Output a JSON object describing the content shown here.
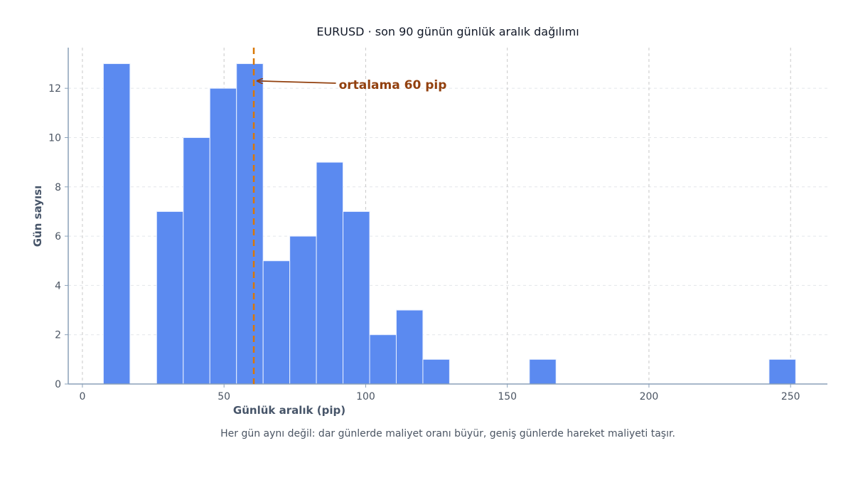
{
  "colors": {
    "bar": "#5B8AF0",
    "bar_edge": "#e8efff",
    "mean_line": "#D97706",
    "annotation": "#92400E",
    "axis": "#8aa0b8",
    "grid_v": "#c8c8c8",
    "grid_h": "#e3e6ea"
  },
  "chart_data": {
    "type": "bar",
    "title": "EURUSD · son 90 günün günlük aralık dağılımı",
    "subtitle": "Her gün aynı değil: dar günlerde maliyet oranı büyür, geniş günlerde hareket maliyeti taşır.",
    "xlabel": "Günlük aralık (pip)",
    "ylabel": "Gün sayısı",
    "xlim": [
      -5,
      263
    ],
    "ylim": [
      0,
      13.65
    ],
    "x_ticks": [
      0,
      50,
      100,
      150,
      200,
      250
    ],
    "y_ticks": [
      0,
      2,
      4,
      6,
      8,
      10,
      12
    ],
    "grid": true,
    "bins": [
      {
        "x0": 7.4,
        "x1": 16.8,
        "count": 13
      },
      {
        "x0": 26.2,
        "x1": 35.6,
        "count": 7
      },
      {
        "x0": 35.6,
        "x1": 45.0,
        "count": 10
      },
      {
        "x0": 45.0,
        "x1": 54.4,
        "count": 12
      },
      {
        "x0": 54.4,
        "x1": 63.8,
        "count": 13
      },
      {
        "x0": 63.8,
        "x1": 73.2,
        "count": 5
      },
      {
        "x0": 73.2,
        "x1": 82.6,
        "count": 6
      },
      {
        "x0": 82.6,
        "x1": 92.0,
        "count": 9
      },
      {
        "x0": 92.0,
        "x1": 101.4,
        "count": 7
      },
      {
        "x0": 101.4,
        "x1": 110.8,
        "count": 2
      },
      {
        "x0": 110.8,
        "x1": 120.2,
        "count": 3
      },
      {
        "x0": 120.2,
        "x1": 129.6,
        "count": 1
      },
      {
        "x0": 157.8,
        "x1": 167.2,
        "count": 1
      },
      {
        "x0": 242.4,
        "x1": 251.8,
        "count": 1
      }
    ],
    "mean": 60.5,
    "annotation": {
      "text": "ortalama 60 pip",
      "text_x": 90.5,
      "text_y": 12.15,
      "arrow_tip_x": 61,
      "arrow_tip_y": 12.3
    }
  }
}
